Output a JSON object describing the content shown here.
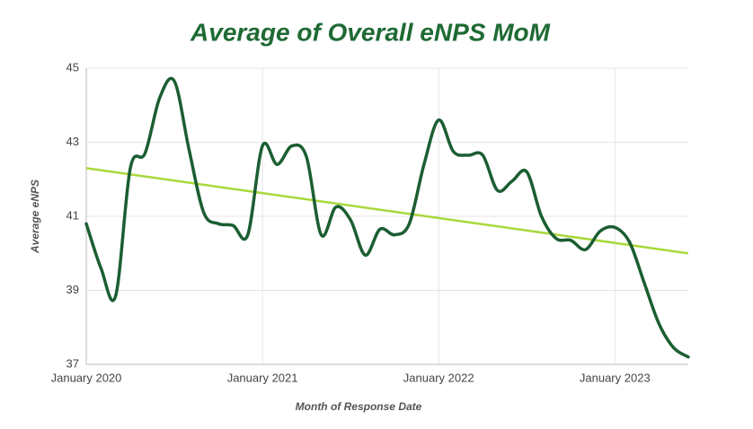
{
  "chart_data": {
    "type": "line",
    "title": "Average of Overall eNPS MoM",
    "x_label": "Month of Response Date",
    "y_label": "Average eNPS",
    "x": [
      "2020-01",
      "2020-02",
      "2020-03",
      "2020-04",
      "2020-05",
      "2020-06",
      "2020-07",
      "2020-08",
      "2020-09",
      "2020-10",
      "2020-11",
      "2020-12",
      "2021-01",
      "2021-02",
      "2021-03",
      "2021-04",
      "2021-05",
      "2021-06",
      "2021-07",
      "2021-08",
      "2021-09",
      "2021-10",
      "2021-11",
      "2021-12",
      "2022-01",
      "2022-02",
      "2022-03",
      "2022-04",
      "2022-05",
      "2022-06",
      "2022-07",
      "2022-08",
      "2022-09",
      "2022-10",
      "2022-11",
      "2022-12",
      "2023-01",
      "2023-02",
      "2023-03",
      "2023-04",
      "2023-05",
      "2023-06"
    ],
    "series": [
      {
        "color": "#1b5e32",
        "values": [
          40.8,
          39.6,
          38.85,
          42.3,
          42.7,
          44.2,
          44.65,
          42.8,
          41.1,
          40.8,
          40.75,
          40.5,
          42.9,
          42.4,
          42.9,
          42.6,
          40.5,
          41.25,
          40.9,
          39.95,
          40.65,
          40.5,
          40.8,
          42.4,
          43.6,
          42.75,
          42.65,
          42.65,
          41.7,
          41.95,
          42.2,
          41.0,
          40.4,
          40.35,
          40.1,
          40.6,
          40.7,
          40.3,
          39.2,
          38.1,
          37.45,
          37.2
        ]
      }
    ],
    "trend": {
      "color": "#a8d83a",
      "x": [
        "2020-01",
        "2023-06"
      ],
      "values": [
        42.3,
        40.0
      ]
    },
    "xlim": [
      "2020-01",
      "2023-06"
    ],
    "xticks": [
      {
        "value": "2020-01",
        "label": "January 2020"
      },
      {
        "value": "2021-01",
        "label": "January 2021"
      },
      {
        "value": "2022-01",
        "label": "January 2022"
      },
      {
        "value": "2023-01",
        "label": "January 2023"
      }
    ],
    "ylim": [
      37,
      45
    ],
    "yticks": [
      37,
      39,
      41,
      43,
      45
    ],
    "grid": true
  }
}
